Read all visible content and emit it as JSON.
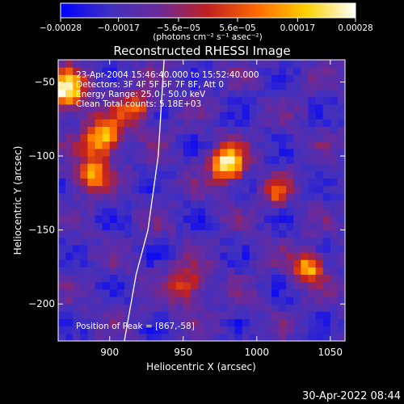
{
  "chart_data": {
    "type": "heatmap",
    "title": "Reconstructed RHESSI Image",
    "xlabel": "Heliocentric X (arcsec)",
    "ylabel": "Heliocentric Y (arcsec)",
    "xlim": [
      865,
      1060
    ],
    "ylim": [
      -225,
      -35
    ],
    "x_ticks": [
      {
        "value": 900,
        "label": "900"
      },
      {
        "value": 950,
        "label": "950"
      },
      {
        "value": 1000,
        "label": "1000"
      },
      {
        "value": 1050,
        "label": "1050"
      }
    ],
    "y_ticks": [
      {
        "value": -50,
        "label": "−50"
      },
      {
        "value": -100,
        "label": "−100"
      },
      {
        "value": -150,
        "label": "−150"
      },
      {
        "value": -200,
        "label": "−200"
      }
    ],
    "colorbar": {
      "range": [
        -0.00028,
        0.00028
      ],
      "ticks": [
        {
          "value": -0.00028,
          "label": "−0.00028"
        },
        {
          "value": -0.00017,
          "label": "−0.00017"
        },
        {
          "value": -5.6e-05,
          "label": "−5.6e−05"
        },
        {
          "value": 5.6e-05,
          "label": "5.6e−05"
        },
        {
          "value": 0.00017,
          "label": "0.00017"
        },
        {
          "value": 0.00028,
          "label": "0.00028"
        }
      ],
      "unit_label": "(photons cm⁻² s⁻¹ asec⁻²)",
      "colors": [
        "#0000ff",
        "#4030c0",
        "#6a2a9a",
        "#c02020",
        "#ff6a00",
        "#ffd000",
        "#ffffff"
      ]
    },
    "annotations": {
      "time_range": "23-Apr-2004 15:46:40.000 to 15:52:40.000",
      "detectors": "Detectors: 3F 4F 5F 6F 7F 8F, Att 0",
      "energy": "Energy Range: 25.0 - 50.0 keV",
      "method": "Clean    Total counts: 5.18E+03",
      "peak": "Position of Peak = [867,-58]"
    },
    "bright_sources": [
      {
        "x": 868,
        "y": -58,
        "intensity": 1.0,
        "sigma": 9
      },
      {
        "x": 978,
        "y": -108,
        "intensity": 1.0,
        "sigma": 8
      },
      {
        "x": 893,
        "y": -90,
        "intensity": 0.85,
        "sigma": 9
      },
      {
        "x": 885,
        "y": -115,
        "intensity": 0.7,
        "sigma": 8
      },
      {
        "x": 915,
        "y": -70,
        "intensity": 0.6,
        "sigma": 8
      },
      {
        "x": 1033,
        "y": -178,
        "intensity": 0.8,
        "sigma": 7
      },
      {
        "x": 1012,
        "y": -127,
        "intensity": 0.55,
        "sigma": 6
      },
      {
        "x": 950,
        "y": -190,
        "intensity": 0.5,
        "sigma": 9
      }
    ],
    "limb_curve": [
      [
        937,
        -35
      ],
      [
        933,
        -100
      ],
      [
        926,
        -150
      ],
      [
        918,
        -180
      ],
      [
        910,
        -225
      ]
    ]
  },
  "footer": {
    "timestamp": "30-Apr-2022 08:44"
  }
}
